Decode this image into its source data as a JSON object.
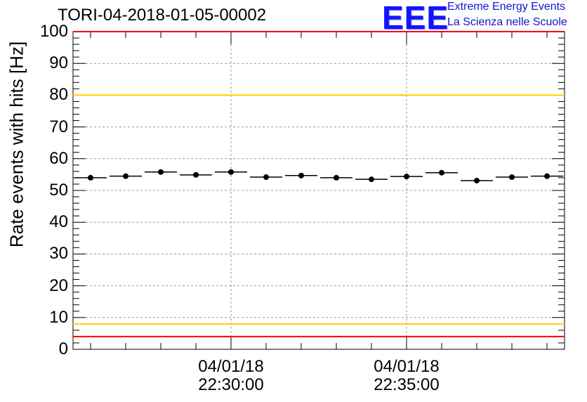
{
  "title": "TORI-04-2018-01-05-00002",
  "logo": {
    "mark": "EEE",
    "line1": "Extreme Energy Events",
    "line2": "La Scienza nelle Scuole"
  },
  "chart_data": {
    "type": "scatter",
    "title": "TORI-04-2018-01-05-00002",
    "xlabel": "",
    "ylabel": "Rate events with hits [Hz]",
    "ylim": [
      0,
      100
    ],
    "xlim": [
      0,
      14
    ],
    "yticks": [
      "0",
      "10",
      "20",
      "30",
      "40",
      "50",
      "60",
      "70",
      "80",
      "90",
      "100"
    ],
    "xticks": [
      {
        "pos": 4.5,
        "date": "04/01/18",
        "time": "22:30:00"
      },
      {
        "pos": 9.5,
        "date": "04/01/18",
        "time": "22:35:00"
      }
    ],
    "grid": true,
    "bin_width": 1,
    "values": [
      54.0,
      54.5,
      55.8,
      54.9,
      55.8,
      54.2,
      54.7,
      54.0,
      53.5,
      54.4,
      55.6,
      53.1,
      54.2,
      54.5
    ],
    "reference_lines": [
      {
        "name": "upper-red",
        "value": 100,
        "color": "#ff0000"
      },
      {
        "name": "upper-yellow",
        "value": 80,
        "color": "#ffcc00"
      },
      {
        "name": "lower-yellow",
        "value": 8,
        "color": "#ffcc00"
      },
      {
        "name": "lower-red",
        "value": 4,
        "color": "#ff0000"
      }
    ]
  }
}
